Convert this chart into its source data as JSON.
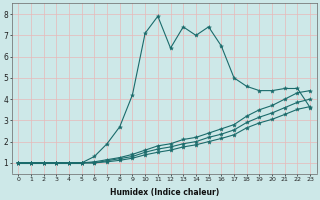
{
  "xlabel": "Humidex (Indice chaleur)",
  "ylabel": "",
  "xlim": [
    -0.5,
    23.5
  ],
  "ylim": [
    0.5,
    8.5
  ],
  "xticks": [
    0,
    1,
    2,
    3,
    4,
    5,
    6,
    7,
    8,
    9,
    10,
    11,
    12,
    13,
    14,
    15,
    16,
    17,
    18,
    19,
    20,
    21,
    22,
    23
  ],
  "yticks": [
    1,
    2,
    3,
    4,
    5,
    6,
    7,
    8
  ],
  "bg_color": "#cde8e8",
  "line_color": "#1a6b6b",
  "series": [
    {
      "x": [
        0,
        1,
        2,
        3,
        4,
        5,
        6,
        7,
        8,
        9,
        10,
        11,
        12,
        13,
        14,
        15,
        16,
        17,
        18,
        19,
        20,
        21,
        22,
        23
      ],
      "y": [
        1.0,
        1.0,
        1.0,
        1.0,
        1.0,
        1.0,
        1.3,
        1.9,
        2.7,
        4.2,
        7.1,
        7.9,
        6.4,
        7.4,
        7.0,
        7.4,
        6.5,
        5.0,
        4.6,
        4.4,
        4.4,
        4.5,
        4.5,
        3.6
      ]
    },
    {
      "x": [
        0,
        1,
        2,
        3,
        4,
        5,
        6,
        7,
        8,
        9,
        10,
        11,
        12,
        13,
        14,
        15,
        16,
        17,
        18,
        19,
        20,
        21,
        22,
        23
      ],
      "y": [
        1.0,
        1.0,
        1.0,
        1.0,
        1.0,
        1.0,
        1.05,
        1.15,
        1.25,
        1.4,
        1.6,
        1.8,
        1.9,
        2.1,
        2.2,
        2.4,
        2.6,
        2.8,
        3.2,
        3.5,
        3.7,
        4.0,
        4.3,
        4.4
      ]
    },
    {
      "x": [
        0,
        1,
        2,
        3,
        4,
        5,
        6,
        7,
        8,
        9,
        10,
        11,
        12,
        13,
        14,
        15,
        16,
        17,
        18,
        19,
        20,
        21,
        22,
        23
      ],
      "y": [
        1.0,
        1.0,
        1.0,
        1.0,
        1.0,
        1.0,
        1.0,
        1.1,
        1.2,
        1.3,
        1.5,
        1.65,
        1.75,
        1.9,
        2.0,
        2.2,
        2.35,
        2.55,
        2.9,
        3.15,
        3.35,
        3.6,
        3.85,
        4.0
      ]
    },
    {
      "x": [
        0,
        1,
        2,
        3,
        4,
        5,
        6,
        7,
        8,
        9,
        10,
        11,
        12,
        13,
        14,
        15,
        16,
        17,
        18,
        19,
        20,
        21,
        22,
        23
      ],
      "y": [
        1.0,
        1.0,
        1.0,
        1.0,
        1.0,
        1.0,
        1.0,
        1.05,
        1.12,
        1.22,
        1.38,
        1.5,
        1.6,
        1.75,
        1.85,
        2.0,
        2.15,
        2.32,
        2.65,
        2.88,
        3.05,
        3.28,
        3.52,
        3.65
      ]
    },
    {
      "x": [
        0,
        1,
        2,
        3,
        4,
        5
      ],
      "y": [
        1.0,
        1.0,
        1.0,
        1.0,
        1.0,
        1.0
      ]
    }
  ],
  "figsize": [
    3.2,
    2.0
  ],
  "dpi": 100
}
